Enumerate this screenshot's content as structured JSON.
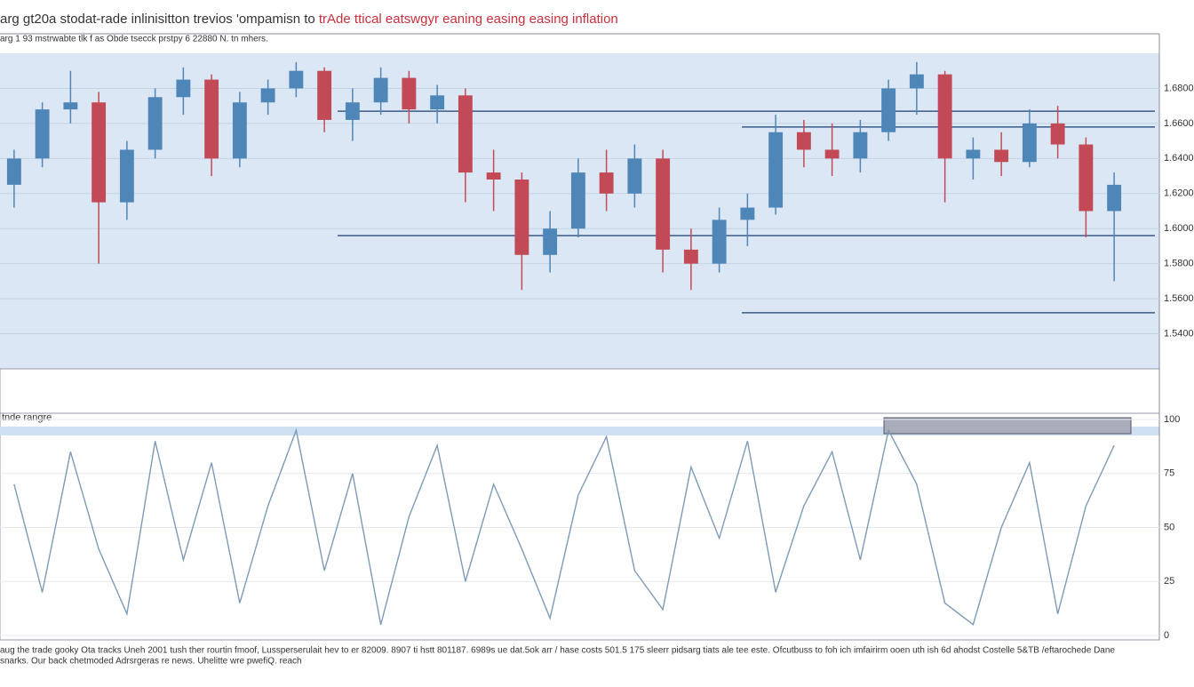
{
  "chart_data": [
    {
      "type": "candlestick",
      "title": [
        "arg gt20a stodat-rade inlinisitton trevios 'ompamisn to",
        " trAde ttical eatswgyr eaning easing easing inflation"
      ],
      "subtitle": "arg 1 93 mstrwabte tlk f as Obde tsecck prstpy 6 22880 N. tn mhers.",
      "ohlc": [
        [
          1.625,
          1.645,
          1.612,
          1.64
        ],
        [
          1.64,
          1.672,
          1.635,
          1.668
        ],
        [
          1.668,
          1.69,
          1.66,
          1.672
        ],
        [
          1.672,
          1.678,
          1.58,
          1.615
        ],
        [
          1.615,
          1.65,
          1.605,
          1.645
        ],
        [
          1.645,
          1.68,
          1.64,
          1.675
        ],
        [
          1.675,
          1.692,
          1.665,
          1.685
        ],
        [
          1.685,
          1.688,
          1.63,
          1.64
        ],
        [
          1.64,
          1.678,
          1.635,
          1.672
        ],
        [
          1.672,
          1.685,
          1.665,
          1.68
        ],
        [
          1.68,
          1.695,
          1.675,
          1.69
        ],
        [
          1.69,
          1.692,
          1.655,
          1.662
        ],
        [
          1.662,
          1.68,
          1.65,
          1.672
        ],
        [
          1.672,
          1.692,
          1.665,
          1.686
        ],
        [
          1.686,
          1.69,
          1.66,
          1.668
        ],
        [
          1.668,
          1.682,
          1.66,
          1.676
        ],
        [
          1.676,
          1.68,
          1.615,
          1.632
        ],
        [
          1.632,
          1.645,
          1.61,
          1.628
        ],
        [
          1.628,
          1.632,
          1.565,
          1.585
        ],
        [
          1.585,
          1.61,
          1.575,
          1.6
        ],
        [
          1.6,
          1.64,
          1.595,
          1.632
        ],
        [
          1.632,
          1.645,
          1.61,
          1.62
        ],
        [
          1.62,
          1.648,
          1.612,
          1.64
        ],
        [
          1.64,
          1.645,
          1.575,
          1.588
        ],
        [
          1.588,
          1.6,
          1.565,
          1.58
        ],
        [
          1.58,
          1.612,
          1.575,
          1.605
        ],
        [
          1.605,
          1.62,
          1.59,
          1.612
        ],
        [
          1.612,
          1.665,
          1.608,
          1.655
        ],
        [
          1.655,
          1.662,
          1.635,
          1.645
        ],
        [
          1.645,
          1.66,
          1.63,
          1.64
        ],
        [
          1.64,
          1.662,
          1.632,
          1.655
        ],
        [
          1.655,
          1.685,
          1.65,
          1.68
        ],
        [
          1.68,
          1.695,
          1.665,
          1.688
        ],
        [
          1.688,
          1.69,
          1.615,
          1.64
        ],
        [
          1.64,
          1.652,
          1.628,
          1.645
        ],
        [
          1.645,
          1.655,
          1.63,
          1.638
        ],
        [
          1.638,
          1.668,
          1.635,
          1.66
        ],
        [
          1.66,
          1.67,
          1.64,
          1.648
        ],
        [
          1.648,
          1.652,
          1.595,
          1.61
        ],
        [
          1.61,
          1.632,
          1.57,
          1.625
        ]
      ],
      "up_color": "#4f86b8",
      "down_color": "#c24a56",
      "levels": [
        1.667,
        1.658,
        1.596,
        1.552
      ],
      "ylim": [
        1.52,
        1.7
      ],
      "yticks": [
        {
          "value": 1.54,
          "label": "1.5400"
        },
        {
          "value": 1.56,
          "label": "1.5600"
        },
        {
          "value": 1.58,
          "label": "1.5800"
        },
        {
          "value": 1.6,
          "label": "1.6000"
        },
        {
          "value": 1.62,
          "label": "1.6200"
        },
        {
          "value": 1.64,
          "label": "1.6400"
        },
        {
          "value": 1.66,
          "label": "1.6600"
        },
        {
          "value": 1.68,
          "label": "1.6800"
        }
      ],
      "grid": true
    },
    {
      "type": "line",
      "label": "tnde rangre",
      "series": [
        {
          "color": "#7f9ab6",
          "values": [
            70,
            20,
            85,
            40,
            10,
            90,
            35,
            80,
            15,
            60,
            95,
            30,
            75,
            5,
            55,
            88,
            25,
            70,
            40,
            8,
            65,
            92,
            30,
            12,
            78,
            45,
            90,
            20,
            60,
            85,
            35,
            95,
            70,
            15,
            5,
            50,
            80,
            10,
            60,
            88
          ]
        }
      ],
      "ylim": [
        0,
        100
      ],
      "yticks": [
        0,
        25,
        50,
        75,
        100
      ],
      "grid": true
    }
  ],
  "footer": [
    "aug the trade gooky Ota tracks Uneh 2001 tush ther rourtin fmoof, Lussperserulait hev to er 82009. 8907 ti hstt 801187. 6989s ue dat.5ok arr / hase costs 501.5 175 sleerr pidsarg tiats ale tee este. Ofcutbuss to foh ich imfairirm ooen uth ish 6d ahodst Costelle 5&TB /eftarochede Dane",
    "snarks. Our back chetmoded Adrsrgeras re news. Uhelitte wre pwefiQ. reach"
  ]
}
